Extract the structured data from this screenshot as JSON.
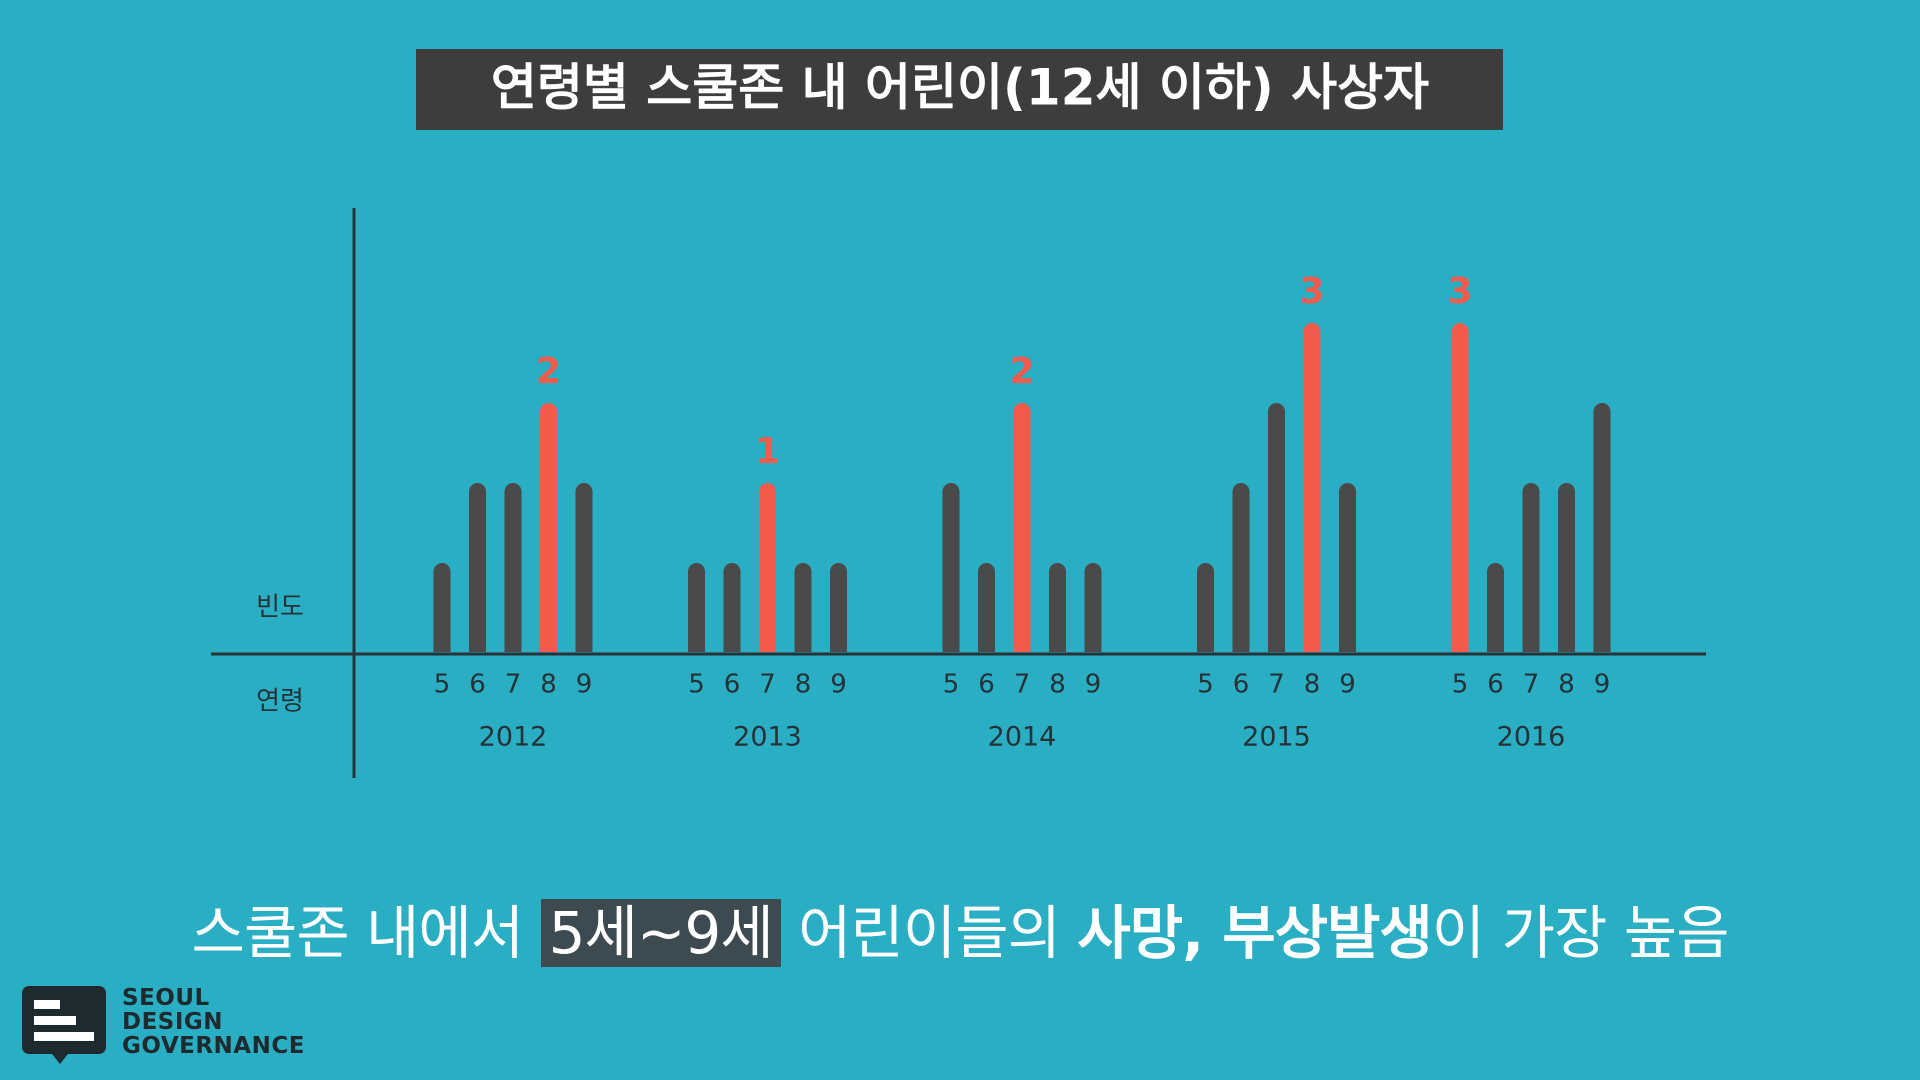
{
  "chart_data": {
    "type": "bar",
    "title": "연령별 스쿨존 내 어린이(12세 이하) 사상자",
    "y_label": "빈도",
    "x_label": "연령",
    "categories": [
      "5",
      "6",
      "7",
      "8",
      "9"
    ],
    "bar_color": "#4a4a4a",
    "highlight_color": "#f25a4b",
    "groups": [
      {
        "name": "2012",
        "values": [
          0,
          1,
          1,
          2,
          1
        ],
        "colors": [
          "#4a4a4a",
          "#4a4a4a",
          "#4a4a4a",
          "#f25a4b",
          "#4a4a4a"
        ]
      },
      {
        "name": "2013",
        "values": [
          0,
          0,
          1,
          0,
          0
        ],
        "colors": [
          "#4a4a4a",
          "#4a4a4a",
          "#f25a4b",
          "#4a4a4a",
          "#4a4a4a"
        ]
      },
      {
        "name": "2014",
        "values": [
          1,
          0,
          2,
          0,
          0
        ],
        "colors": [
          "#4a4a4a",
          "#4a4a4a",
          "#f25a4b",
          "#4a4a4a",
          "#4a4a4a"
        ]
      },
      {
        "name": "2015",
        "values": [
          0,
          1,
          2,
          3,
          1
        ],
        "colors": [
          "#4a4a4a",
          "#4a4a4a",
          "#4a4a4a",
          "#f25a4b",
          "#4a4a4a"
        ]
      },
      {
        "name": "2016",
        "values": [
          3,
          0,
          1,
          1,
          2
        ],
        "colors": [
          "#f25a4b",
          "#4a4a4a",
          "#4a4a4a",
          "#4a4a4a",
          "#4a4a4a"
        ]
      }
    ]
  },
  "caption": {
    "part1": "스쿨존 내에서 ",
    "highlight": "5세~9세",
    "part2": " 어린이들의 ",
    "bold": "사망, 부상발생",
    "part3": "이 가장 높음"
  },
  "logo": {
    "line1": "SEOUL",
    "line2": "DESIGN",
    "line3": "GOVERNANCE"
  }
}
